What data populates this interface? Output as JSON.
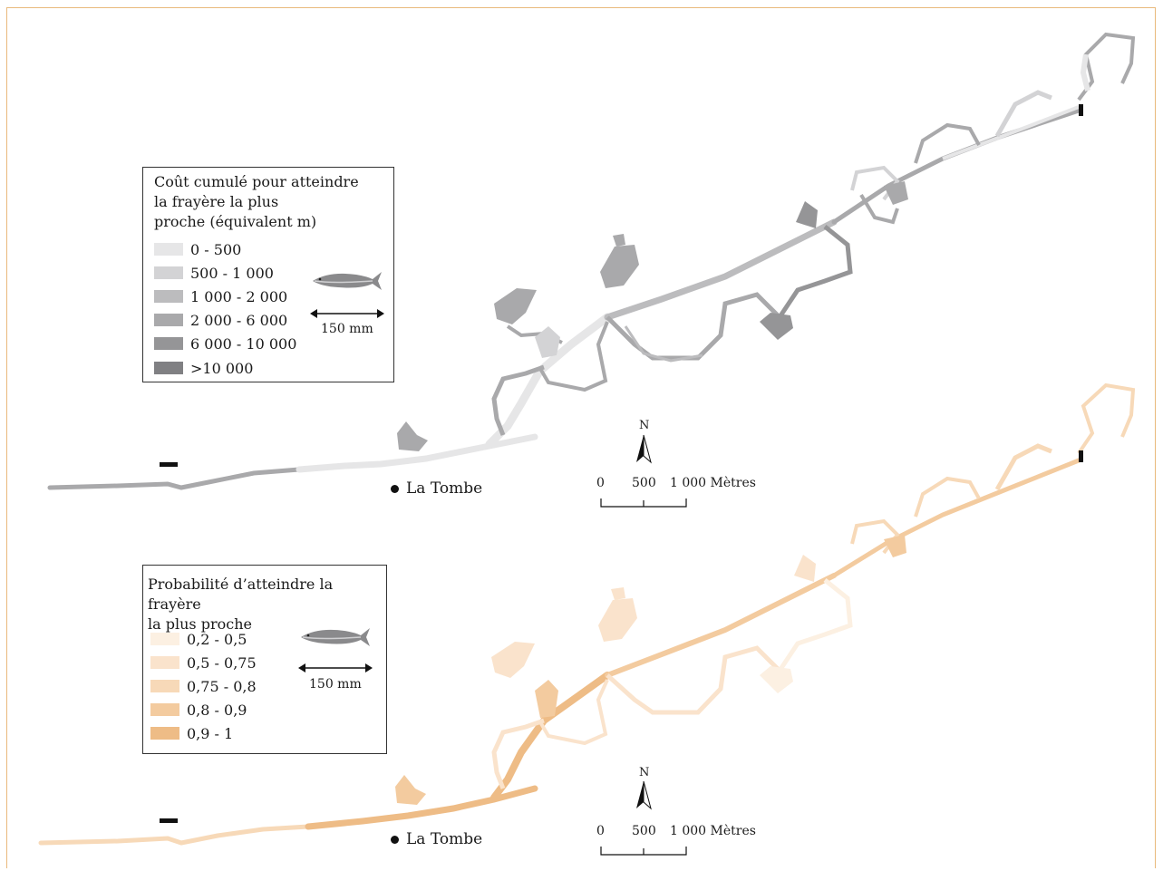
{
  "colors": {
    "frame": "#e9b97c",
    "gray_classes": [
      "#e6e6e7",
      "#d3d3d5",
      "#bcbcbe",
      "#a9a9ab",
      "#959597",
      "#808083"
    ],
    "orange_classes": [
      "#fcf0e2",
      "#fae3cc",
      "#f7d9b8",
      "#f3cb9f",
      "#eebc86"
    ]
  },
  "top_map": {
    "legend": {
      "title": "Coût cumulé pour atteindre\nla frayère la plus\nproche (équivalent m)",
      "classes": [
        "0 - 500",
        "500 - 1 000",
        "1 000 - 2 000",
        "2 000 - 6 000",
        "6 000 - 10 000",
        ">10 000"
      ],
      "fish_size_label": "150 mm",
      "fish_icon": "fish-icon"
    },
    "place_label": "La Tombe",
    "north_label": "N",
    "scale": {
      "labels": [
        "0",
        "500",
        "1 000 Mètres"
      ]
    }
  },
  "bottom_map": {
    "legend": {
      "title": "Probabilité d’atteindre la frayère\nla plus proche",
      "classes": [
        "0,2 - 0,5",
        "0,5 - 0,75",
        "0,75 - 0,8",
        "0,8 - 0,9",
        "0,9 - 1"
      ],
      "fish_size_label": "150 mm",
      "fish_icon": "fish-icon"
    },
    "place_label": "La Tombe",
    "north_label": "N",
    "scale": {
      "labels": [
        "0",
        "500",
        "1 000 Mètres"
      ]
    }
  }
}
